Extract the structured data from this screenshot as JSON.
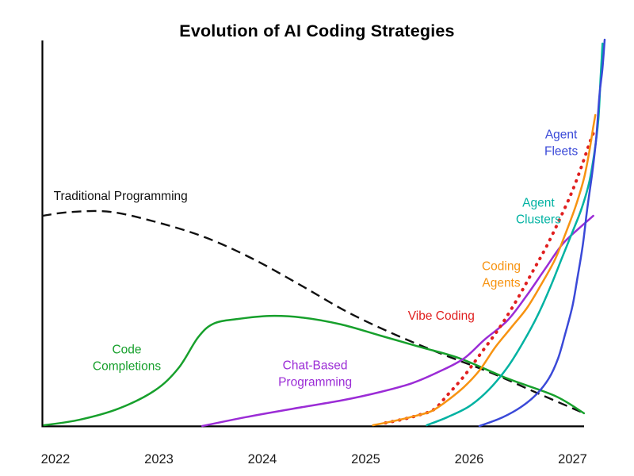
{
  "chart_data": {
    "type": "line",
    "title": "Evolution of AI Coding Strategies",
    "xlabel": "",
    "ylabel": "",
    "x_ticks": [
      2022,
      2023,
      2024,
      2025,
      2026,
      2027
    ],
    "x_tick_labels": [
      "2022",
      "2023",
      "2024",
      "2025",
      "2026",
      "2027"
    ],
    "x_range": [
      2021.85,
      2027.35
    ],
    "y_range": [
      0,
      100
    ],
    "y_axis_note": "y axis unlabeled; values are relative adoption (0-100) estimated from curve heights",
    "grid": false,
    "legend_position": "inline-labels",
    "series": [
      {
        "name": "Traditional Programming",
        "color": "#111111",
        "style": "dashed",
        "label": {
          "lines": [
            "Traditional Programming"
          ],
          "x": 2022.63,
          "y": 59.5
        },
        "points": [
          [
            2021.87,
            54.4
          ],
          [
            2022.15,
            55.4
          ],
          [
            2022.54,
            55.4
          ],
          [
            2023.0,
            52.6
          ],
          [
            2023.46,
            48.7
          ],
          [
            2023.92,
            43.1
          ],
          [
            2024.38,
            36.3
          ],
          [
            2024.83,
            29.4
          ],
          [
            2025.29,
            23.6
          ],
          [
            2025.75,
            18.5
          ],
          [
            2026.21,
            13.8
          ],
          [
            2026.67,
            8.4
          ],
          [
            2027.11,
            3.3
          ]
        ]
      },
      {
        "name": "Code Completions",
        "color": "#17a02c",
        "style": "solid",
        "label": {
          "lines": [
            "Code",
            "Completions"
          ],
          "x": 2022.69,
          "y": 17.7
        },
        "points": [
          [
            2021.89,
            0.2
          ],
          [
            2022.23,
            1.6
          ],
          [
            2022.61,
            4.5
          ],
          [
            2022.96,
            9.2
          ],
          [
            2023.19,
            15.0
          ],
          [
            2023.38,
            23.0
          ],
          [
            2023.53,
            26.5
          ],
          [
            2023.76,
            27.7
          ],
          [
            2024.07,
            28.5
          ],
          [
            2024.38,
            28.1
          ],
          [
            2024.76,
            26.3
          ],
          [
            2025.14,
            23.4
          ],
          [
            2025.52,
            20.5
          ],
          [
            2025.91,
            17.5
          ],
          [
            2026.37,
            12.3
          ],
          [
            2026.83,
            7.8
          ],
          [
            2027.11,
            3.3
          ]
        ]
      },
      {
        "name": "Chat-Based Programming",
        "color": "#9b2cd6",
        "style": "solid",
        "label": {
          "lines": [
            "Chat-Based",
            "Programming"
          ],
          "x": 2024.51,
          "y": 13.6
        },
        "points": [
          [
            2023.42,
            0.0
          ],
          [
            2023.84,
            2.3
          ],
          [
            2024.3,
            4.5
          ],
          [
            2024.76,
            6.6
          ],
          [
            2025.14,
            8.8
          ],
          [
            2025.45,
            11.1
          ],
          [
            2025.72,
            14.2
          ],
          [
            2025.95,
            17.5
          ],
          [
            2026.15,
            22.4
          ],
          [
            2026.37,
            27.3
          ],
          [
            2026.56,
            33.9
          ],
          [
            2026.74,
            40.9
          ],
          [
            2026.9,
            47.0
          ],
          [
            2027.06,
            51.1
          ],
          [
            2027.2,
            54.4
          ]
        ]
      },
      {
        "name": "Vibe Coding",
        "color": "#e01f1f",
        "style": "dotted",
        "label": {
          "lines": [
            "Vibe Coding"
          ],
          "x": 2025.73,
          "y": 28.5
        },
        "points": [
          [
            2025.19,
            0.8
          ],
          [
            2025.37,
            1.8
          ],
          [
            2025.52,
            2.9
          ],
          [
            2025.66,
            4.3
          ],
          [
            2025.79,
            8.0
          ],
          [
            2025.95,
            12.9
          ],
          [
            2026.11,
            18.7
          ],
          [
            2026.29,
            25.3
          ],
          [
            2026.46,
            32.6
          ],
          [
            2026.61,
            39.8
          ],
          [
            2026.75,
            46.6
          ],
          [
            2026.88,
            53.8
          ],
          [
            2027.0,
            61.0
          ],
          [
            2027.1,
            68.2
          ],
          [
            2027.17,
            73.7
          ],
          [
            2027.22,
            77.0
          ]
        ]
      },
      {
        "name": "Coding Agents",
        "color": "#f79311",
        "style": "solid",
        "label": {
          "lines": [
            "Coding",
            "Agents"
          ],
          "x": 2026.31,
          "y": 39.2
        },
        "points": [
          [
            2025.07,
            0.2
          ],
          [
            2025.29,
            1.4
          ],
          [
            2025.49,
            2.7
          ],
          [
            2025.64,
            3.9
          ],
          [
            2025.79,
            6.6
          ],
          [
            2025.95,
            10.1
          ],
          [
            2026.1,
            14.4
          ],
          [
            2026.25,
            20.3
          ],
          [
            2026.41,
            25.6
          ],
          [
            2026.56,
            30.6
          ],
          [
            2026.7,
            36.8
          ],
          [
            2026.83,
            43.1
          ],
          [
            2026.93,
            49.7
          ],
          [
            2027.03,
            56.9
          ],
          [
            2027.11,
            64.1
          ],
          [
            2027.16,
            70.8
          ],
          [
            2027.2,
            77.4
          ],
          [
            2027.22,
            80.5
          ]
        ]
      },
      {
        "name": "Agent Clusters",
        "color": "#00b2a2",
        "style": "solid",
        "label": {
          "lines": [
            "Agent",
            "Clusters"
          ],
          "x": 2026.67,
          "y": 55.6
        },
        "points": [
          [
            2025.59,
            0.2
          ],
          [
            2025.79,
            2.3
          ],
          [
            2026.0,
            5.1
          ],
          [
            2026.19,
            9.4
          ],
          [
            2026.37,
            15.2
          ],
          [
            2026.52,
            21.6
          ],
          [
            2026.66,
            28.5
          ],
          [
            2026.79,
            36.3
          ],
          [
            2026.9,
            43.7
          ],
          [
            2027.0,
            50.3
          ],
          [
            2027.09,
            56.5
          ],
          [
            2027.16,
            63.0
          ],
          [
            2027.21,
            70.6
          ],
          [
            2027.25,
            79.5
          ],
          [
            2027.27,
            89.7
          ],
          [
            2027.29,
            99.0
          ]
        ]
      },
      {
        "name": "Agent Fleets",
        "color": "#3a49d8",
        "style": "solid",
        "label": {
          "lines": [
            "Agent",
            "Fleets"
          ],
          "x": 2026.89,
          "y": 73.3
        },
        "points": [
          [
            2026.1,
            0.0
          ],
          [
            2026.31,
            2.1
          ],
          [
            2026.5,
            4.9
          ],
          [
            2026.65,
            8.2
          ],
          [
            2026.77,
            12.3
          ],
          [
            2026.86,
            17.5
          ],
          [
            2026.93,
            24.0
          ],
          [
            2027.0,
            31.2
          ],
          [
            2027.05,
            38.8
          ],
          [
            2027.1,
            47.0
          ],
          [
            2027.14,
            55.9
          ],
          [
            2027.19,
            65.5
          ],
          [
            2027.23,
            74.9
          ],
          [
            2027.26,
            85.6
          ],
          [
            2027.29,
            92.8
          ],
          [
            2027.31,
            100.0
          ]
        ]
      }
    ]
  }
}
